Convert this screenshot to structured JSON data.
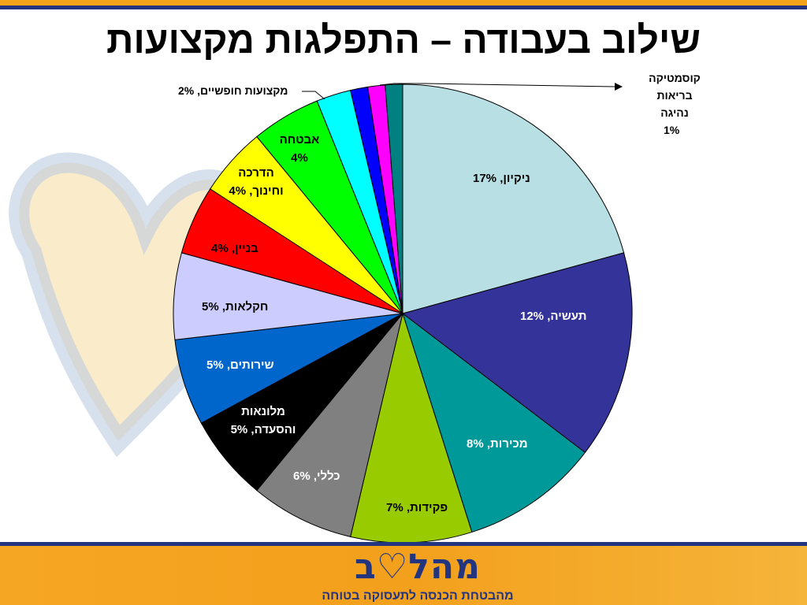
{
  "slide": {
    "title": "שילוב בעבודה – התפלגות מקצועות"
  },
  "logo": {
    "name": "מהל♡ב",
    "tagline": "מהבטחת הכנסה לתעסוקה בטוחה"
  },
  "chart_data": {
    "type": "pie",
    "title": "שילוב בעבודה – התפלגות מקצועות",
    "slices": [
      {
        "label": "ניקיון",
        "value": 17,
        "color": "#b8dfe3"
      },
      {
        "label": "תעשיה",
        "value": 12,
        "color": "#333399"
      },
      {
        "label": "מכירות",
        "value": 8,
        "color": "#009999"
      },
      {
        "label": "פקידות",
        "value": 7,
        "color": "#99cc00"
      },
      {
        "label": "כללי",
        "value": 6,
        "color": "#808080"
      },
      {
        "label": "מלונאות והסעדה",
        "value": 5,
        "color": "#000000"
      },
      {
        "label": "שירותים",
        "value": 5,
        "color": "#0066cc"
      },
      {
        "label": "חקלאות",
        "value": 5,
        "color": "#ccccff"
      },
      {
        "label": "בניין",
        "value": 4,
        "color": "#ff0000"
      },
      {
        "label": "הדרכה וחינוך",
        "value": 4,
        "color": "#ffff00"
      },
      {
        "label": "אבטחה",
        "value": 4,
        "color": "#00ff00"
      },
      {
        "label": "מקצועות חופשיים",
        "value": 2,
        "color": "#00ffff"
      },
      {
        "label": "קוסמטיקה",
        "value": 1,
        "color": "#0000ff"
      },
      {
        "label": "בריאות",
        "value": 1,
        "color": "#ff00ff"
      },
      {
        "label": "נהיגה",
        "value": 1,
        "color": "#008080"
      }
    ],
    "labels": {
      "nikayon": "ניקיון, 17%",
      "taasiya": "תעשיה, 12%",
      "mechirot": "מכירות, 8%",
      "pkidut": "פקידות, 7%",
      "klali": "כללי, 6%",
      "malonaut_1": "מלונאות",
      "malonaut_2": "והסעדה, 5%",
      "sherutim": "שירותים, 5%",
      "klaut": "חקלאות, 5%",
      "binyan": "בניין, 4%",
      "hadracha_1": "הדרכה",
      "hadracha_2": "וחינוך, 4%",
      "avtacha_1": "אבטחה",
      "avtacha_2": "4%",
      "miktzoot": "מקצועות חופשיים, 2%",
      "small_1": "קוסמטיקה",
      "small_2": "בריאות",
      "small_3": "נהיגה",
      "small_4": "1%"
    }
  }
}
